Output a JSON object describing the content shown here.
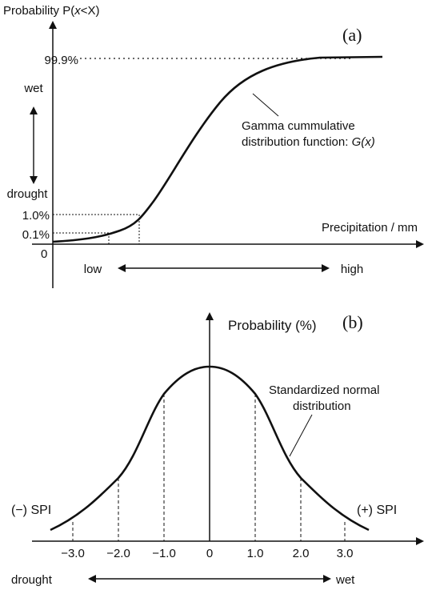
{
  "panel_a": {
    "panel_label": "(a)",
    "y_axis_title": {
      "prefix": "Probability P(",
      "italic": "x",
      "suffix": "<X)"
    },
    "x_axis_title": "Precipitation / mm",
    "tick_labels": [
      "99.9%",
      "1.0%",
      "0.1%",
      "0"
    ],
    "wet_label": "wet",
    "drought_label": "drought",
    "low_label": "low",
    "high_label": "high",
    "curve_label_line1": "Gamma cummulative",
    "curve_label_line2_prefix": "distribution function: ",
    "curve_label_line2_italic": "G(x)"
  },
  "panel_b": {
    "panel_label": "(b)",
    "y_axis_title": "Probability (%)",
    "curve_label_line1": "Standardized normal",
    "curve_label_line2": "distribution",
    "neg_spi_label": "(−) SPI",
    "pos_spi_label": "(+) SPI",
    "x_ticks": [
      "−3.0",
      "−2.0",
      "−1.0",
      "0",
      "1.0",
      "2.0",
      "3.0"
    ],
    "drought_label": "drought",
    "wet_label": "wet"
  },
  "colors": {
    "ink": "#111111",
    "background": "#ffffff"
  }
}
